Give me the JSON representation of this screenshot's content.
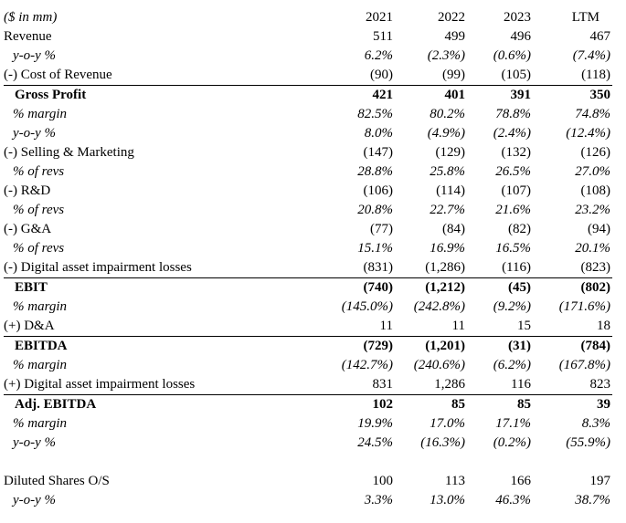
{
  "header": {
    "units": "($ in mm)",
    "years": [
      "2021",
      "2022",
      "2023",
      "LTM"
    ]
  },
  "rows": [
    {
      "label": "Revenue",
      "values": [
        "511",
        "499",
        "496",
        "467"
      ]
    },
    {
      "label": "y-o-y %",
      "values": [
        "6.2%",
        "(2.3%)",
        "(0.6%)",
        "(7.4%)"
      ]
    },
    {
      "label": "(-) Cost of Revenue",
      "values": [
        "(90)",
        "(99)",
        "(105)",
        "(118)"
      ]
    },
    {
      "label": "Gross Profit",
      "values": [
        "421",
        "401",
        "391",
        "350"
      ]
    },
    {
      "label": "% margin",
      "values": [
        "82.5%",
        "80.2%",
        "78.8%",
        "74.8%"
      ]
    },
    {
      "label": "y-o-y %",
      "values": [
        "8.0%",
        "(4.9%)",
        "(2.4%)",
        "(12.4%)"
      ]
    },
    {
      "label": "(-) Selling & Marketing",
      "values": [
        "(147)",
        "(129)",
        "(132)",
        "(126)"
      ]
    },
    {
      "label": "% of revs",
      "values": [
        "28.8%",
        "25.8%",
        "26.5%",
        "27.0%"
      ]
    },
    {
      "label": "(-) R&D",
      "values": [
        "(106)",
        "(114)",
        "(107)",
        "(108)"
      ]
    },
    {
      "label": "% of revs",
      "values": [
        "20.8%",
        "22.7%",
        "21.6%",
        "23.2%"
      ]
    },
    {
      "label": "(-) G&A",
      "values": [
        "(77)",
        "(84)",
        "(82)",
        "(94)"
      ]
    },
    {
      "label": "% of revs",
      "values": [
        "15.1%",
        "16.9%",
        "16.5%",
        "20.1%"
      ]
    },
    {
      "label": "(-) Digital asset impairment losses",
      "values": [
        "(831)",
        "(1,286)",
        "(116)",
        "(823)"
      ]
    },
    {
      "label": "EBIT",
      "values": [
        "(740)",
        "(1,212)",
        "(45)",
        "(802)"
      ]
    },
    {
      "label": "% margin",
      "values": [
        "(145.0%)",
        "(242.8%)",
        "(9.2%)",
        "(171.6%)"
      ]
    },
    {
      "label": "(+) D&A",
      "values": [
        "11",
        "11",
        "15",
        "18"
      ]
    },
    {
      "label": "EBITDA",
      "values": [
        "(729)",
        "(1,201)",
        "(31)",
        "(784)"
      ]
    },
    {
      "label": "% margin",
      "values": [
        "(142.7%)",
        "(240.6%)",
        "(6.2%)",
        "(167.8%)"
      ]
    },
    {
      "label": "(+) Digital asset impairment losses",
      "values": [
        "831",
        "1,286",
        "116",
        "823"
      ]
    },
    {
      "label": "Adj. EBITDA",
      "values": [
        "102",
        "85",
        "85",
        "39"
      ]
    },
    {
      "label": "% margin",
      "values": [
        "19.9%",
        "17.0%",
        "17.1%",
        "8.3%"
      ]
    },
    {
      "label": "y-o-y %",
      "values": [
        "24.5%",
        "(16.3%)",
        "(0.2%)",
        "(55.9%)"
      ]
    },
    {
      "label": "Diluted Shares O/S",
      "values": [
        "100",
        "113",
        "166",
        "197"
      ]
    },
    {
      "label": "y-o-y %",
      "values": [
        "3.3%",
        "13.0%",
        "46.3%",
        "38.7%"
      ]
    }
  ]
}
